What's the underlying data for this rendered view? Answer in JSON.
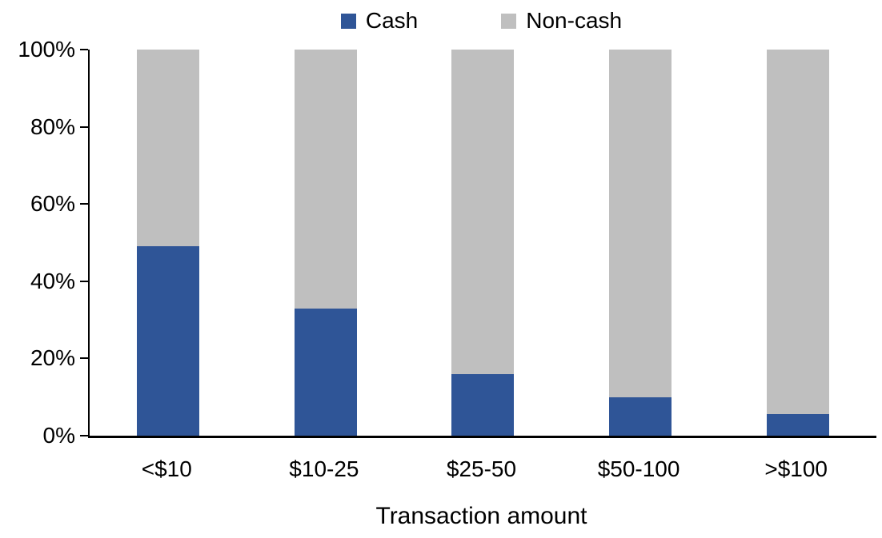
{
  "chart_data": {
    "type": "bar",
    "stacked": true,
    "stack_mode": "percent",
    "title": "",
    "xlabel": "Transaction amount",
    "ylabel": "",
    "categories": [
      "<$10",
      "$10-25",
      "$25-50",
      "$50-100",
      ">$100"
    ],
    "series": [
      {
        "name": "Cash",
        "color": "#2F5597",
        "values": [
          49,
          33,
          16,
          10,
          5.5
        ]
      },
      {
        "name": "Non-cash",
        "color": "#BFBFBF",
        "values": [
          51,
          67,
          84,
          90,
          94.5
        ]
      }
    ],
    "ylim": [
      0,
      100
    ],
    "yticks": [
      {
        "value": 0,
        "label": "0%"
      },
      {
        "value": 20,
        "label": "20%"
      },
      {
        "value": 40,
        "label": "40%"
      },
      {
        "value": 60,
        "label": "60%"
      },
      {
        "value": 80,
        "label": "80%"
      },
      {
        "value": 100,
        "label": "100%"
      }
    ],
    "grid": false,
    "legend_position": "top-center"
  },
  "colors": {
    "axis": "#000000",
    "background": "#FFFFFF",
    "cash": "#2F5597",
    "noncash": "#BFBFBF"
  }
}
